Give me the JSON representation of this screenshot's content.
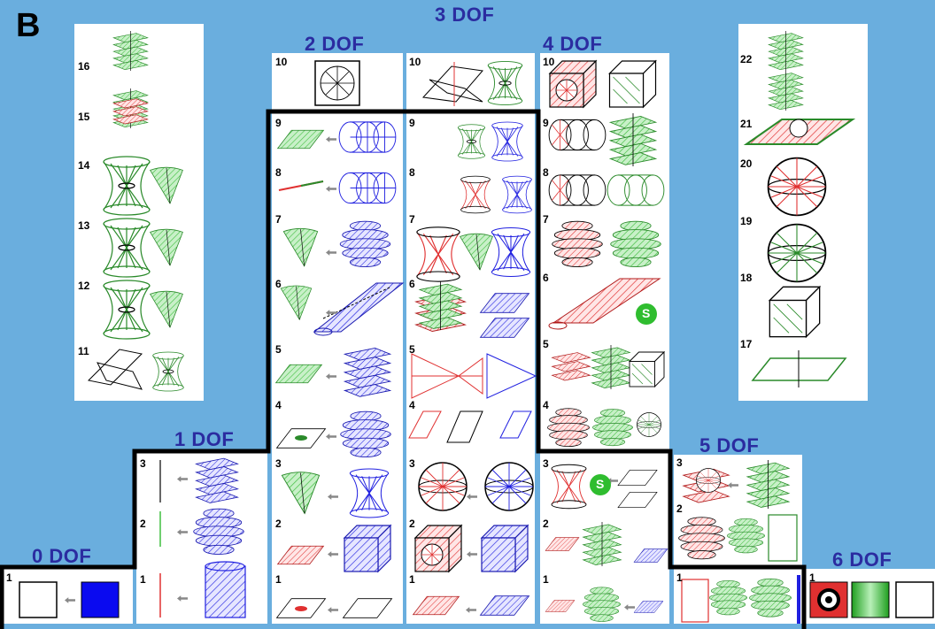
{
  "figure_label": "B",
  "dof_labels": {
    "dof0": "0 DOF",
    "dof1": "1 DOF",
    "dof2": "2 DOF",
    "dof3": "3 DOF",
    "dof4": "4 DOF",
    "dof5": "5 DOF",
    "dof6": "6 DOF"
  },
  "colors": {
    "background": "#6aaede",
    "panel": "#ffffff",
    "label": "#2b2ca0",
    "green": "#3fbf3f",
    "blue": "#2020e0",
    "red": "#e03030",
    "black": "#000000"
  },
  "left_column": {
    "rows": [
      "16",
      "15",
      "14",
      "13",
      "12",
      "11"
    ]
  },
  "right_column": {
    "rows": [
      "22",
      "21",
      "20",
      "19",
      "18",
      "17"
    ]
  },
  "col_2dof": {
    "rows": [
      "10",
      "9",
      "8",
      "7",
      "6",
      "5",
      "4",
      "3",
      "2",
      "1"
    ]
  },
  "col_3dof": {
    "rows": [
      "10",
      "9",
      "8",
      "7",
      "6",
      "5",
      "4",
      "3",
      "2",
      "1"
    ]
  },
  "col_4dof": {
    "rows": [
      "10",
      "9",
      "8",
      "7",
      "6",
      "5",
      "4",
      "3",
      "2",
      "1"
    ],
    "badge": "S"
  },
  "col_1dof": {
    "rows": [
      "3",
      "2",
      "1"
    ]
  },
  "col_5dof": {
    "rows": [
      "3",
      "2",
      "1"
    ]
  },
  "col_0dof": {
    "rows": [
      "1"
    ]
  },
  "col_6dof": {
    "rows": [
      "1"
    ]
  }
}
